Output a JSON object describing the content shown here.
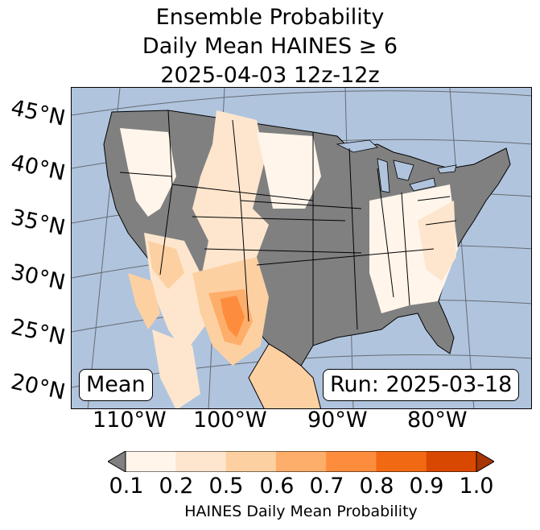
{
  "title": {
    "line1": "Ensemble Probability",
    "line2": "Daily Mean HAINES ≥ 6",
    "line3": "2025-04-03 12z-12z"
  },
  "map": {
    "lat_labels": [
      "45°N",
      "40°N",
      "35°N",
      "30°N",
      "25°N",
      "20°N"
    ],
    "lon_labels": [
      "110°W",
      "100°W",
      "90°W",
      "80°W"
    ],
    "left_badge": "Mean",
    "right_badge": "Run: 2025-03-18",
    "ocean_color": "#b0c4de",
    "masked_color": "#808080"
  },
  "colorbar": {
    "label": "HAINES Daily Mean Probability",
    "ticks": [
      "0.1",
      "0.2",
      "0.5",
      "0.6",
      "0.7",
      "0.8",
      "0.9",
      "1.0"
    ],
    "colors": [
      "#fff5eb",
      "#fee6ce",
      "#fdd0a2",
      "#fdae6b",
      "#fd8d3c",
      "#f16913",
      "#d94801",
      "#a63603"
    ],
    "under_color": "#808080"
  }
}
